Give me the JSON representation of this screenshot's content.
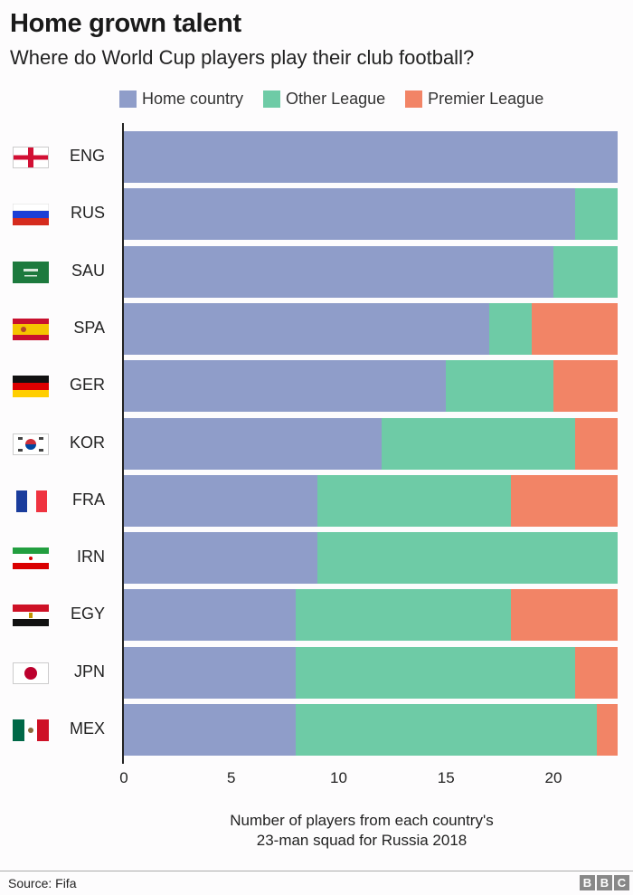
{
  "header": {
    "title": "Home grown talent",
    "subtitle": "Where do World Cup players play their club football?"
  },
  "legend": [
    {
      "label": "Home country",
      "color": "#8f9dc9"
    },
    {
      "label": "Other League",
      "color": "#6ecba6"
    },
    {
      "label": "Premier League",
      "color": "#f28466"
    }
  ],
  "axis": {
    "ticks": [
      "0",
      "5",
      "10",
      "15",
      "20"
    ],
    "xlabel_line1": "Number of players from each country's",
    "xlabel_line2": "23-man squad for Russia 2018"
  },
  "footer": {
    "source": "Source: Fifa",
    "logo": [
      "B",
      "B",
      "C"
    ]
  },
  "chart_data": {
    "type": "bar",
    "orientation": "horizontal",
    "stacked": true,
    "title": "Home grown talent",
    "subtitle": "Where do World Cup players play their club football?",
    "xlabel": "Number of players from each country's 23-man squad for Russia 2018",
    "ylabel": "",
    "xlim": [
      0,
      23
    ],
    "xticks": [
      0,
      5,
      10,
      15,
      20
    ],
    "grid": false,
    "legend_position": "top",
    "categories": [
      "ENG",
      "RUS",
      "SAU",
      "SPA",
      "GER",
      "KOR",
      "FRA",
      "IRN",
      "EGY",
      "JPN",
      "MEX"
    ],
    "series": [
      {
        "name": "Home country",
        "color": "#8f9dc9",
        "values": [
          23,
          21,
          20,
          17,
          15,
          12,
          9,
          9,
          8,
          8,
          8
        ]
      },
      {
        "name": "Other League",
        "color": "#6ecba6",
        "values": [
          0,
          2,
          3,
          2,
          5,
          9,
          9,
          14,
          10,
          13,
          14
        ]
      },
      {
        "name": "Premier League",
        "color": "#f28466",
        "values": [
          0,
          0,
          0,
          4,
          3,
          2,
          5,
          0,
          5,
          2,
          1
        ]
      }
    ],
    "source": "Source: Fifa"
  }
}
